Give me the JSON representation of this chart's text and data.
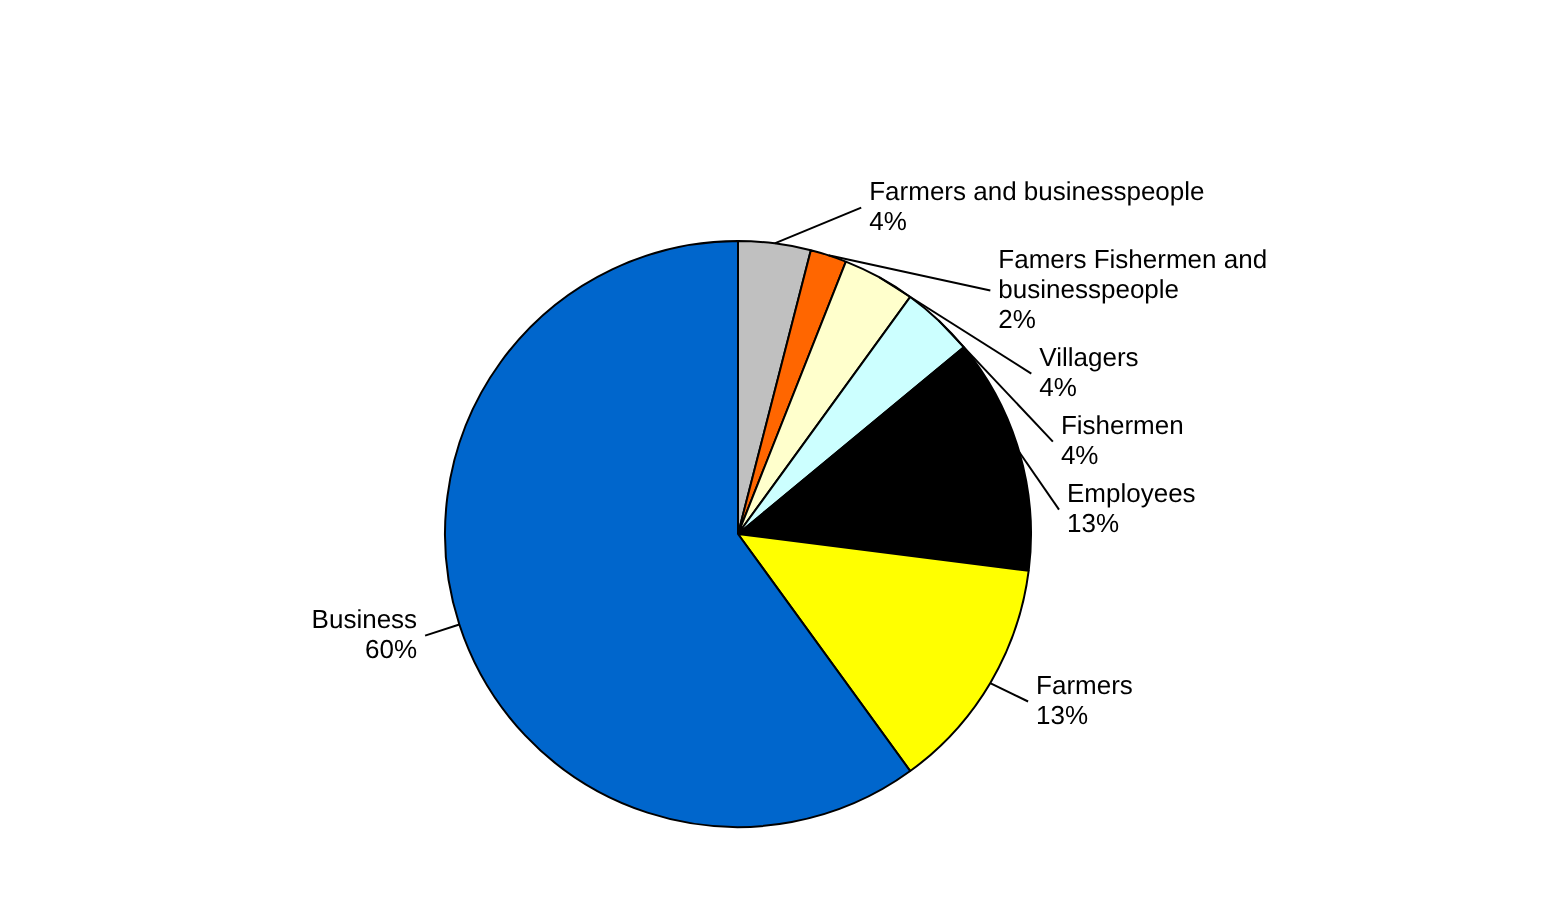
{
  "chart_data": {
    "type": "pie",
    "categories": [
      "Farmers and businesspeople",
      "Famers Fishermen and businesspeople",
      "Villagers",
      "Fishermen",
      "Employees",
      "Farmers",
      "Business"
    ],
    "values": [
      4,
      2,
      4,
      4,
      13,
      13,
      60
    ],
    "colors": [
      "#c0c0c0",
      "#ff6600",
      "#ffffcc",
      "#ccffff",
      "#000000",
      "#ffff00",
      "#0066cc"
    ],
    "value_labels": [
      "4%",
      "2%",
      "4%",
      "4%",
      "13%",
      "13%",
      "60%"
    ],
    "legend": false
  }
}
